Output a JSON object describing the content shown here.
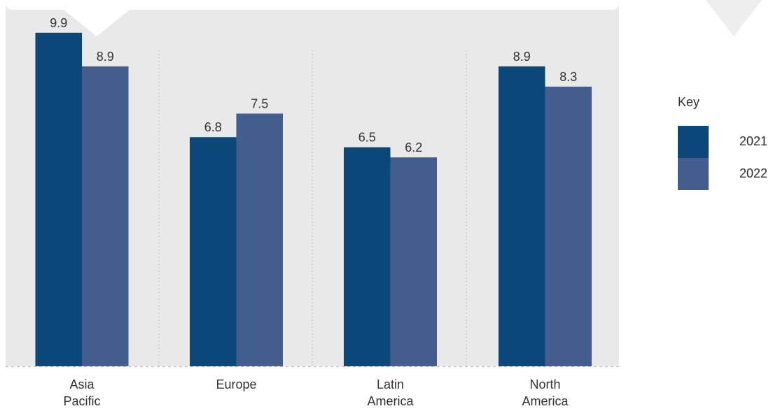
{
  "chart_data": {
    "type": "bar",
    "categories": [
      [
        "Asia",
        "Pacific"
      ],
      [
        "Europe"
      ],
      [
        "Latin",
        "America"
      ],
      [
        "North",
        "America"
      ]
    ],
    "series": [
      {
        "name": "2021",
        "values": [
          9.9,
          6.8,
          6.5,
          8.9
        ],
        "color": "#0b4778"
      },
      {
        "name": "2022",
        "values": [
          8.9,
          7.5,
          6.2,
          8.3
        ],
        "color": "#435d8e"
      }
    ],
    "data_labels": [
      [
        "9.9",
        "8.9"
      ],
      [
        "6.8",
        "7.5"
      ],
      [
        "6.5",
        "6.2"
      ],
      [
        "8.9",
        "8.3"
      ]
    ],
    "ylim": [
      0,
      10
    ],
    "title": "",
    "xlabel": "",
    "ylabel": "",
    "grid": true,
    "legend_position": "right"
  },
  "legend": {
    "title": "Key",
    "items": [
      {
        "label": "2021",
        "color": "#0b4778"
      },
      {
        "label": "2022",
        "color": "#435d8e"
      }
    ]
  },
  "colors": {
    "plot_background": "#e9e9e9",
    "gridline": "#bdbdbd"
  }
}
